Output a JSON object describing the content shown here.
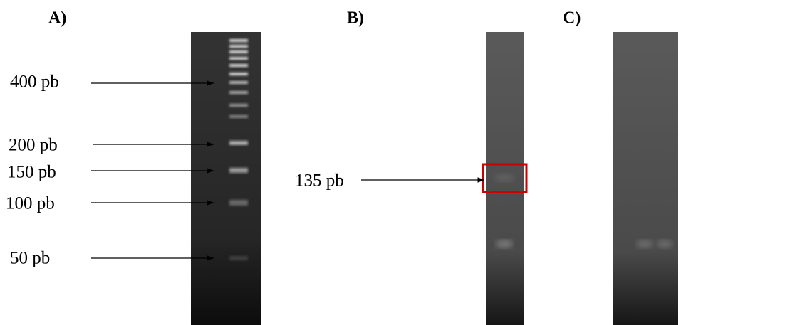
{
  "panels": [
    {
      "label": "A)",
      "markers": [
        "400 pb",
        "200 pb",
        "150 pb",
        "100 pb",
        "50 pb"
      ]
    },
    {
      "label": "B)",
      "markers": [
        "135 pb"
      ]
    },
    {
      "label": "C)"
    }
  ]
}
